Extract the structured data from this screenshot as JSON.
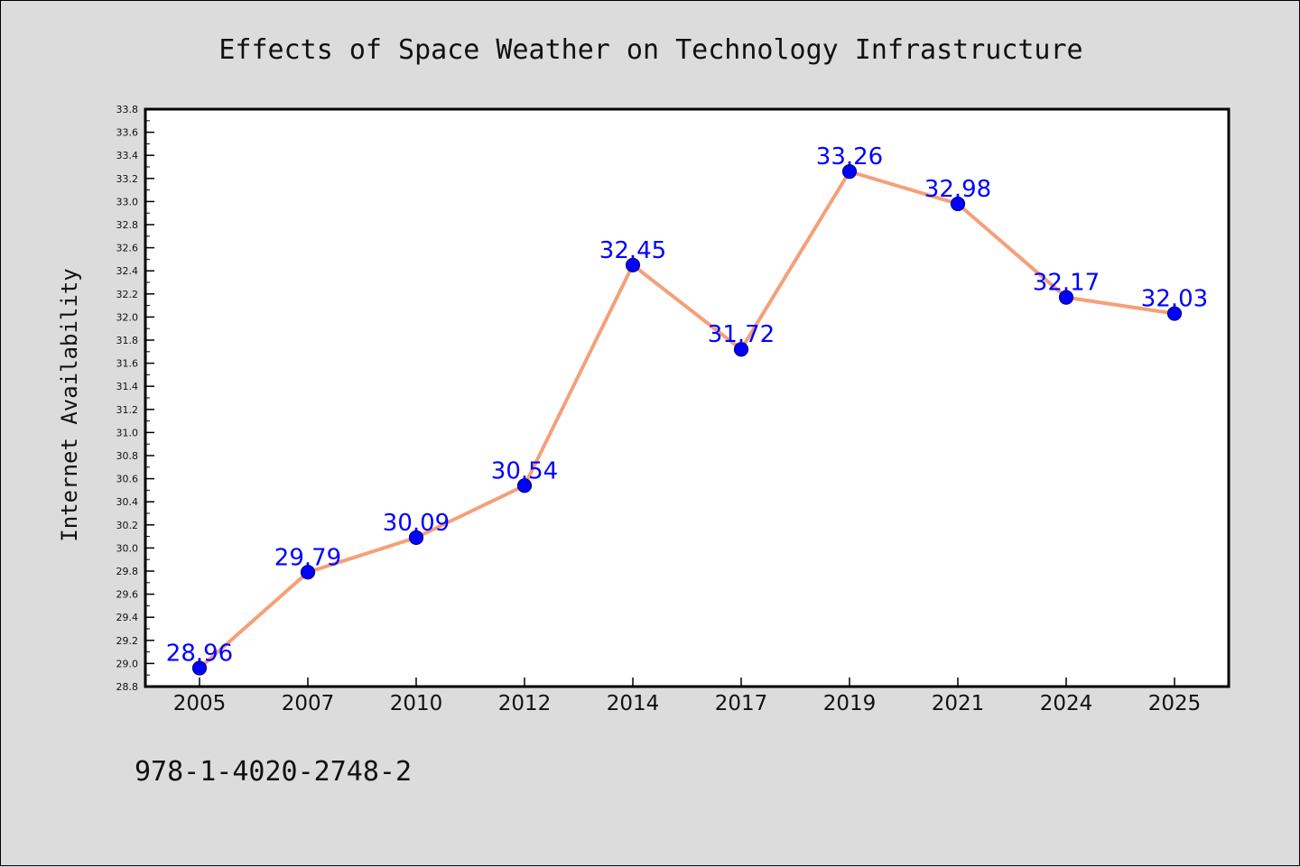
{
  "chart_data": {
    "type": "line",
    "title": "Effects of Space Weather on Technology Infrastructure",
    "ylabel": "Internet Availability",
    "xlabel": "",
    "categories": [
      "2005",
      "2007",
      "2010",
      "2012",
      "2014",
      "2017",
      "2019",
      "2021",
      "2024",
      "2025"
    ],
    "values": [
      28.96,
      29.79,
      30.09,
      30.54,
      32.45,
      31.72,
      33.26,
      32.98,
      32.17,
      32.03
    ],
    "data_labels": [
      "28.96",
      "29.79",
      "30.09",
      "30.54",
      "32.45",
      "31.72",
      "33.26",
      "32.98",
      "32.17",
      "32.03"
    ],
    "ylim": [
      28.8,
      33.8
    ],
    "yticks": [
      "28.8",
      "29.0",
      "29.2",
      "29.4",
      "29.6",
      "29.8",
      "30.0",
      "30.2",
      "30.4",
      "30.6",
      "30.8",
      "31.0",
      "31.2",
      "31.4",
      "31.6",
      "31.8",
      "32.0",
      "32.2",
      "32.4",
      "32.6",
      "32.8",
      "33.0",
      "33.2",
      "33.4",
      "33.6",
      "33.8"
    ],
    "grid": false,
    "legend": "none",
    "colors": {
      "line": "#f4a07a",
      "marker": "#0000ff",
      "marker_edge": "#00008b",
      "data_label": "#0000ff",
      "background": "#dcdcdc",
      "plot_background": "#ffffff"
    }
  },
  "footnote": "978-1-4020-2748-2"
}
